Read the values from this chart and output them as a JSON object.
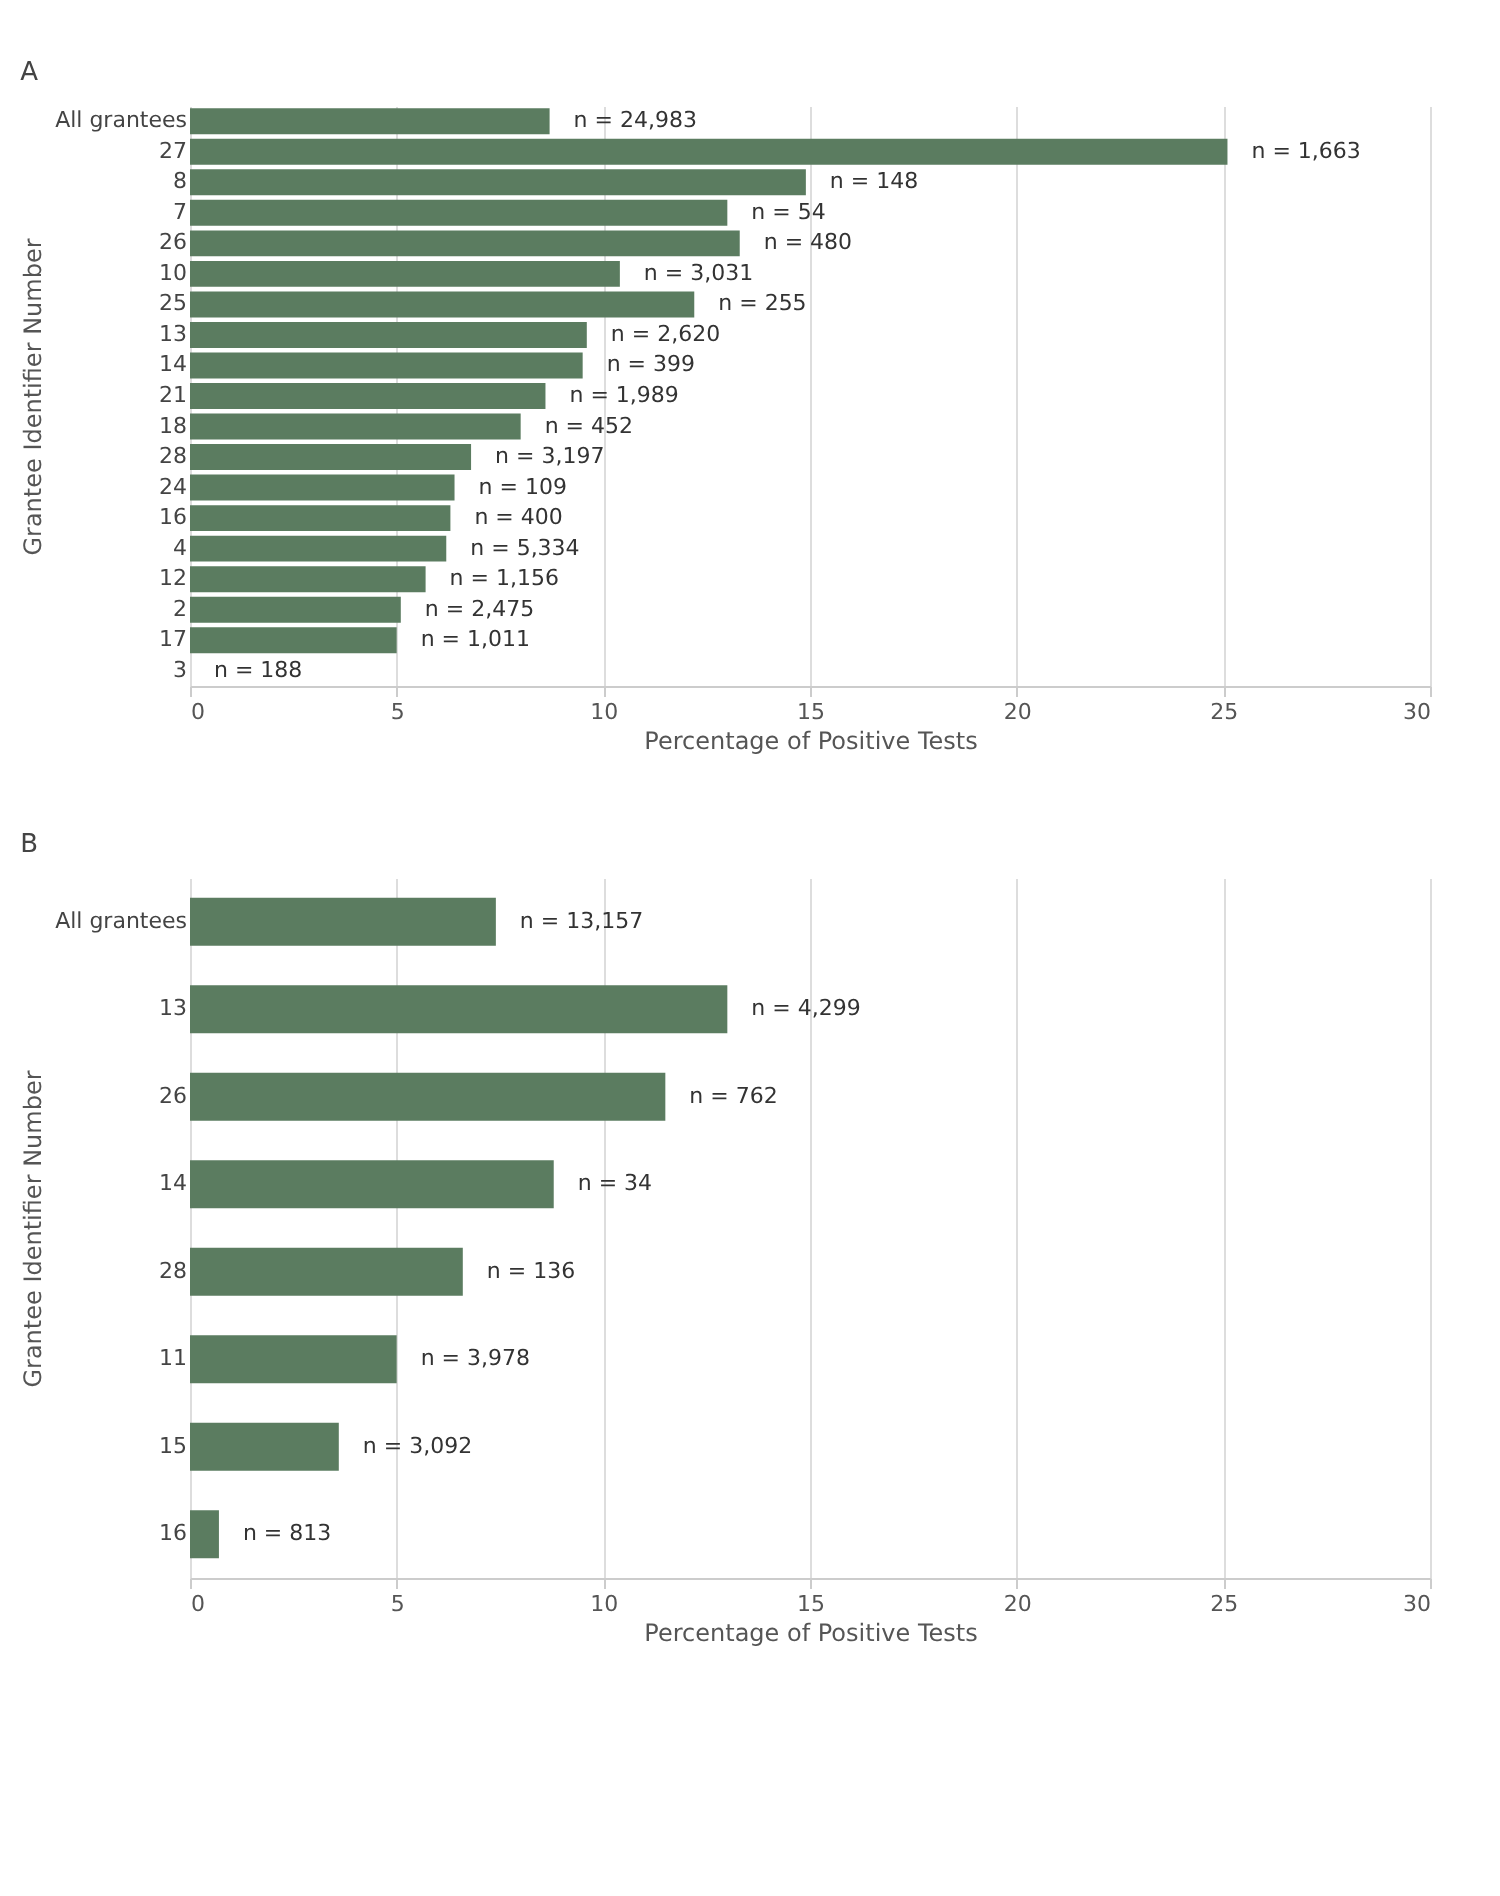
{
  "chart_data": [
    {
      "type": "bar",
      "orientation": "horizontal",
      "title": "A",
      "xlabel": "Percentage of Positive Tests",
      "ylabel": "Grantee Identifier Number",
      "categories": [
        "All grantees",
        "27",
        "8",
        "7",
        "26",
        "10",
        "25",
        "13",
        "14",
        "21",
        "18",
        "28",
        "24",
        "16",
        "4",
        "12",
        "2",
        "17",
        "3"
      ],
      "values": [
        8.7,
        25.1,
        14.9,
        13.0,
        13.3,
        10.4,
        12.2,
        9.6,
        9.5,
        8.6,
        8.0,
        6.8,
        6.4,
        6.3,
        6.2,
        5.7,
        5.1,
        5.0,
        0
      ],
      "annotations": [
        {
          "text": "n = 24,983",
          "x": 8.7,
          "y": "All grantees"
        },
        {
          "text": "n = 1,663",
          "x": 25.1,
          "y": "27"
        },
        {
          "text": "n = 148",
          "x": 14.9,
          "y": "8"
        },
        {
          "text": "n = 54",
          "x": 13.0,
          "y": "7"
        },
        {
          "text": "n = 480",
          "x": 13.3,
          "y": "26"
        },
        {
          "text": "n = 3,031",
          "x": 10.4,
          "y": "10"
        },
        {
          "text": "n = 255",
          "x": 12.2,
          "y": "25"
        },
        {
          "text": "n = 2,620",
          "x": 9.6,
          "y": "13"
        },
        {
          "text": "n = 399",
          "x": 9.5,
          "y": "14"
        },
        {
          "text": "n = 1,989",
          "x": 8.6,
          "y": "21"
        },
        {
          "text": "n = 452",
          "x": 8.0,
          "y": "18"
        },
        {
          "text": "n = 3,197",
          "x": 6.8,
          "y": "28"
        },
        {
          "text": "n = 109",
          "x": 6.4,
          "y": "24"
        },
        {
          "text": "n = 400",
          "x": 6.3,
          "y": "16"
        },
        {
          "text": "n = 5,334",
          "x": 6.2,
          "y": "4"
        },
        {
          "text": "n = 1,156",
          "x": 5.7,
          "y": "12"
        },
        {
          "text": "n = 2,475",
          "x": 5.1,
          "y": "2"
        },
        {
          "text": "n = 1,011",
          "x": 5.0,
          "y": "17"
        },
        {
          "text": "n = 188",
          "x": 0,
          "y": "3"
        }
      ],
      "color": "#5b7c60",
      "xlim": [
        0,
        30
      ],
      "xticks": [
        0,
        5,
        10,
        15,
        20,
        25,
        30
      ],
      "grid": "x"
    },
    {
      "type": "bar",
      "orientation": "horizontal",
      "title": "B",
      "xlabel": "Percentage of Positive Tests",
      "ylabel": "Grantee Identifier Number",
      "categories": [
        "All grantees",
        "13",
        "26",
        "14",
        "28",
        "11",
        "15",
        "16"
      ],
      "values": [
        7.4,
        13.0,
        11.5,
        8.8,
        6.6,
        5.0,
        3.6,
        0.7
      ],
      "annotations": [
        {
          "text": "n = 13,157",
          "x": 7.4,
          "y": "All grantees"
        },
        {
          "text": "n = 4,299",
          "x": 13.0,
          "y": "13"
        },
        {
          "text": "n = 762",
          "x": 11.5,
          "y": "26"
        },
        {
          "text": "n = 34",
          "x": 8.8,
          "y": "14"
        },
        {
          "text": "n = 136",
          "x": 6.6,
          "y": "28"
        },
        {
          "text": "n = 3,978",
          "x": 5.0,
          "y": "11"
        },
        {
          "text": "n = 3,092",
          "x": 3.6,
          "y": "15"
        },
        {
          "text": "n = 813",
          "x": 0.7,
          "y": "16"
        }
      ],
      "color": "#5b7c60",
      "xlim": [
        0,
        30
      ],
      "xticks": [
        0,
        5,
        10,
        15,
        20,
        25,
        30
      ],
      "grid": "x"
    }
  ]
}
